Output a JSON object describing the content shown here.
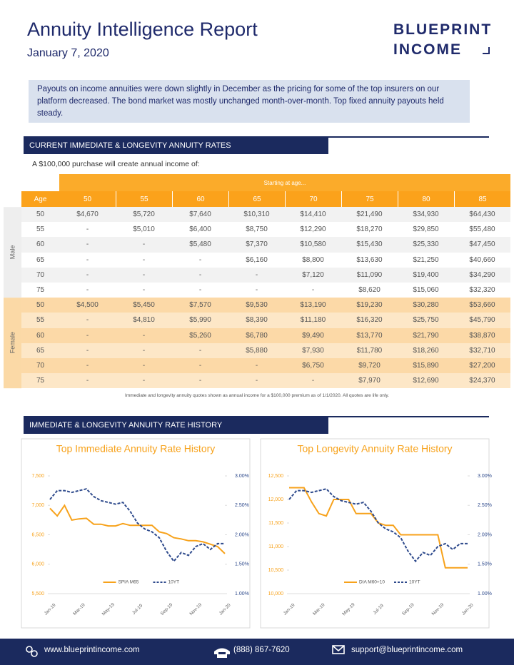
{
  "header": {
    "title": "Annuity Intelligence Report",
    "date": "January 7, 2020",
    "logo": [
      "BLUEPRINT",
      "INCOME"
    ]
  },
  "summary": "Payouts on income annuities were down slightly in December as the pricing for some of the top insurers on our platform decreased. The bond market was mostly unchanged month-over-month. Top fixed annuity payouts held steady.",
  "sections": [
    "CURRENT IMMEDIATE & LONGEVITY ANNUITY RATES",
    "IMMEDIATE & LONGEVITY ANNUITY RATE HISTORY"
  ],
  "table": {
    "intro": "A $100,000 purchase will create annual income of:",
    "span_header": "Starting at age...",
    "columns": [
      "Age",
      "50",
      "55",
      "60",
      "65",
      "70",
      "75",
      "80",
      "85"
    ],
    "groups": [
      {
        "label": "Male",
        "rows": [
          [
            "50",
            "$4,670",
            "$5,720",
            "$7,640",
            "$10,310",
            "$14,410",
            "$21,490",
            "$34,930",
            "$64,430"
          ],
          [
            "55",
            "-",
            "$5,010",
            "$6,400",
            "$8,750",
            "$12,290",
            "$18,270",
            "$29,850",
            "$55,480"
          ],
          [
            "60",
            "-",
            "-",
            "$5,480",
            "$7,370",
            "$10,580",
            "$15,430",
            "$25,330",
            "$47,450"
          ],
          [
            "65",
            "-",
            "-",
            "-",
            "$6,160",
            "$8,800",
            "$13,630",
            "$21,250",
            "$40,660"
          ],
          [
            "70",
            "-",
            "-",
            "-",
            "-",
            "$7,120",
            "$11,090",
            "$19,400",
            "$34,290"
          ],
          [
            "75",
            "-",
            "-",
            "-",
            "-",
            "-",
            "$8,620",
            "$15,060",
            "$32,320"
          ]
        ]
      },
      {
        "label": "Female",
        "rows": [
          [
            "50",
            "$4,500",
            "$5,450",
            "$7,570",
            "$9,530",
            "$13,190",
            "$19,230",
            "$30,280",
            "$53,660"
          ],
          [
            "55",
            "-",
            "$4,810",
            "$5,990",
            "$8,390",
            "$11,180",
            "$16,320",
            "$25,750",
            "$45,790"
          ],
          [
            "60",
            "-",
            "-",
            "$5,260",
            "$6,780",
            "$9,490",
            "$13,770",
            "$21,790",
            "$38,870"
          ],
          [
            "65",
            "-",
            "-",
            "-",
            "$5,880",
            "$7,930",
            "$11,780",
            "$18,260",
            "$32,710"
          ],
          [
            "70",
            "-",
            "-",
            "-",
            "-",
            "$6,750",
            "$9,720",
            "$15,890",
            "$27,200"
          ],
          [
            "75",
            "-",
            "-",
            "-",
            "-",
            "-",
            "$7,970",
            "$12,690",
            "$24,370"
          ]
        ]
      }
    ]
  },
  "note": "Immediate and longevity annuity quotes shown as annual income for a $100,000 premium as of 1/1/2020. All quotes are life only.",
  "chart_data": [
    {
      "type": "line",
      "title": "Top Immediate Annuity Rate History",
      "categories": [
        "Jan-19",
        null,
        null,
        null,
        "Mar-19",
        null,
        null,
        null,
        "May-19",
        null,
        null,
        null,
        "Jul-19",
        null,
        null,
        null,
        "Sep-19",
        null,
        null,
        null,
        "Nov-19",
        null,
        null,
        null,
        "Jan-20"
      ],
      "series": [
        {
          "name": "SPIA M65",
          "color": "#f7a21b",
          "style": "solid",
          "values": [
            6950,
            6820,
            7000,
            6750,
            6770,
            6780,
            6680,
            6680,
            6650,
            6650,
            6690,
            6660,
            6660,
            6660,
            6660,
            6550,
            6520,
            6450,
            6430,
            6400,
            6400,
            6380,
            6340,
            6300,
            6180
          ]
        },
        {
          "name": "10YT",
          "color": "#2e4a8c",
          "style": "dashed",
          "axis": "y2",
          "values": [
            2.6,
            2.75,
            2.75,
            2.72,
            2.75,
            2.78,
            2.65,
            2.58,
            2.55,
            2.52,
            2.55,
            2.4,
            2.2,
            2.1,
            2.05,
            1.95,
            1.72,
            1.55,
            1.7,
            1.65,
            1.8,
            1.85,
            1.75,
            1.85,
            1.85
          ]
        }
      ],
      "ylim": [
        5500,
        7500
      ],
      "yticks": [
        {
          "value": 5500,
          "label": "5,500"
        },
        {
          "value": 6000,
          "label": "6,000"
        },
        {
          "value": 6500,
          "label": "6,500"
        },
        {
          "value": 7000,
          "label": "7,000"
        },
        {
          "value": 7500,
          "label": "7,500"
        }
      ],
      "y2lim": [
        1,
        3
      ],
      "y2ticks": [
        {
          "value": 1,
          "label": "1.00%"
        },
        {
          "value": 1.5,
          "label": "1.50%"
        },
        {
          "value": 2,
          "label": "2.00%"
        },
        {
          "value": 2.5,
          "label": "2.50%"
        },
        {
          "value": 3,
          "label": "3.00%"
        }
      ]
    },
    {
      "type": "line",
      "title": "Top Longevity Annuity Rate History",
      "categories": [
        "Jan-19",
        null,
        null,
        null,
        "Mar-19",
        null,
        null,
        null,
        "May-19",
        null,
        null,
        null,
        "Jul-19",
        null,
        null,
        null,
        "Sep-19",
        null,
        null,
        null,
        "Nov-19",
        null,
        null,
        null,
        "Jan-20"
      ],
      "series": [
        {
          "name": "DIA M60+10",
          "color": "#f7a21b",
          "style": "solid",
          "values": [
            12250,
            12250,
            12250,
            11950,
            11700,
            11650,
            12000,
            12000,
            12000,
            11700,
            11700,
            11700,
            11500,
            11450,
            11450,
            11250,
            11250,
            11250,
            11250,
            11250,
            11250,
            10550,
            10550,
            10550,
            10550
          ]
        },
        {
          "name": "10YT",
          "color": "#2e4a8c",
          "style": "dashed",
          "axis": "y2",
          "values": [
            2.6,
            2.75,
            2.75,
            2.72,
            2.75,
            2.78,
            2.65,
            2.58,
            2.55,
            2.52,
            2.55,
            2.4,
            2.2,
            2.1,
            2.05,
            1.95,
            1.72,
            1.55,
            1.7,
            1.65,
            1.8,
            1.85,
            1.75,
            1.85,
            1.85
          ]
        }
      ],
      "ylim": [
        10000,
        12500
      ],
      "yticks": [
        {
          "value": 10000,
          "label": "10,000"
        },
        {
          "value": 10500,
          "label": "10,500"
        },
        {
          "value": 11000,
          "label": "11,000"
        },
        {
          "value": 11500,
          "label": "11,500"
        },
        {
          "value": 12000,
          "label": "12,000"
        },
        {
          "value": 12500,
          "label": "12,500"
        }
      ],
      "y2lim": [
        1,
        3
      ],
      "y2ticks": [
        {
          "value": 1,
          "label": "1.00%"
        },
        {
          "value": 1.5,
          "label": "1.50%"
        },
        {
          "value": 2,
          "label": "2.00%"
        },
        {
          "value": 2.5,
          "label": "2.50%"
        },
        {
          "value": 3,
          "label": "3.00%"
        }
      ]
    }
  ],
  "footer": [
    "www.blueprintincome.com",
    "(888) 867-7620",
    "support@blueprintincome.com"
  ]
}
